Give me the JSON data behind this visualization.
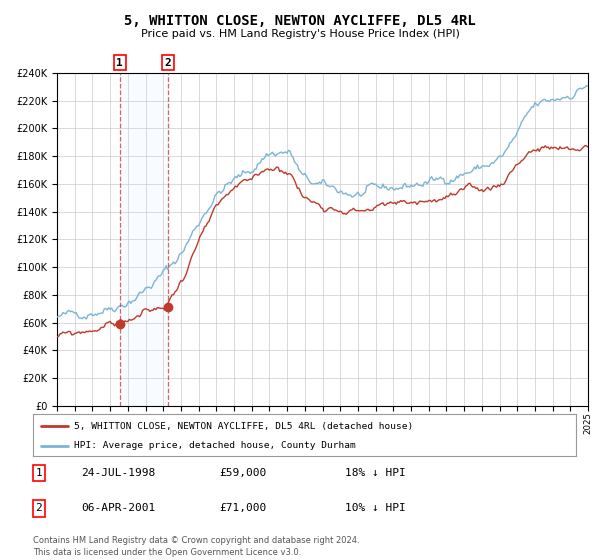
{
  "title": "5, WHITTON CLOSE, NEWTON AYCLIFFE, DL5 4RL",
  "subtitle": "Price paid vs. HM Land Registry's House Price Index (HPI)",
  "legend_line1": "5, WHITTON CLOSE, NEWTON AYCLIFFE, DL5 4RL (detached house)",
  "legend_line2": "HPI: Average price, detached house, County Durham",
  "sale1_date": "24-JUL-1998",
  "sale1_price": 59000,
  "sale1_label": "18% ↓ HPI",
  "sale2_date": "06-APR-2001",
  "sale2_price": 71000,
  "sale2_label": "10% ↓ HPI",
  "footer": "Contains HM Land Registry data © Crown copyright and database right 2024.\nThis data is licensed under the Open Government Licence v3.0.",
  "hpi_color": "#7ab5d8",
  "price_color": "#c0392b",
  "sale_dot_color": "#c0392b",
  "bg_color": "#ffffff",
  "grid_color": "#cccccc",
  "shade_color": "#ddeeff",
  "ylim_min": 0,
  "ylim_max": 240000,
  "ytick_step": 20000,
  "x_start_year": 1995,
  "x_end_year": 2025,
  "sale1_year": 1998.55,
  "sale2_year": 2001.27
}
